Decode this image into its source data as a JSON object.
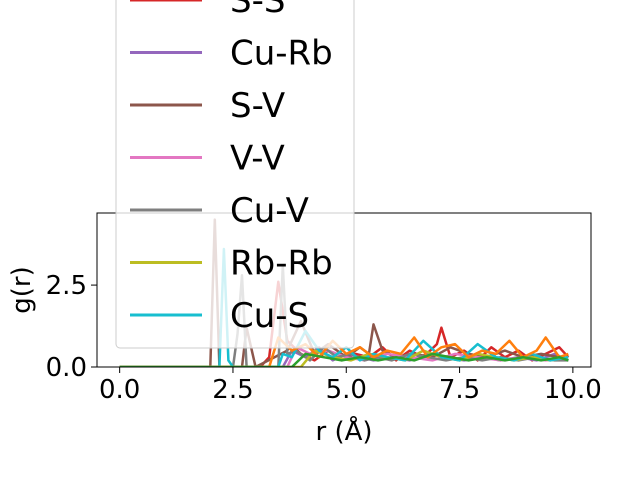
{
  "chart_data": {
    "type": "line",
    "xlabel": "r (Å)",
    "ylabel": "g(r)",
    "xlim": [
      -0.5,
      10.4
    ],
    "ylim": [
      0,
      4.7
    ],
    "xticks": [
      0.0,
      2.5,
      5.0,
      7.5,
      10.0
    ],
    "xtick_labels": [
      "0.0",
      "2.5",
      "5.0",
      "7.5",
      "10.0"
    ],
    "yticks": [
      0.0,
      2.5
    ],
    "ytick_labels": [
      "0.0",
      "2.5"
    ],
    "grid": false,
    "legend_position": "upper-left, overflowing top",
    "series": [
      {
        "name": "S-S",
        "color": "#d62728",
        "x": [
          0,
          3.1,
          3.3,
          3.5,
          3.7,
          4.0,
          4.3,
          4.6,
          4.9,
          5.2,
          5.5,
          5.8,
          6.1,
          6.4,
          6.7,
          7.0,
          7.1,
          7.3,
          7.6,
          7.9,
          8.2,
          8.5,
          8.8,
          9.1,
          9.4,
          9.7,
          9.9
        ],
        "y": [
          0,
          0,
          0.3,
          2.6,
          0.8,
          0.4,
          0.2,
          0.5,
          0.2,
          0.4,
          0.3,
          0.6,
          0.2,
          0.5,
          0.3,
          0.7,
          1.2,
          0.3,
          0.5,
          0.2,
          0.6,
          0.3,
          0.5,
          0.2,
          0.4,
          0.6,
          0.3
        ]
      },
      {
        "name": "Cu-Rb",
        "color": "#9467bd",
        "x": [
          0,
          3.6,
          3.8,
          4.1,
          4.4,
          4.7,
          5.0,
          5.3,
          5.6,
          6.0,
          6.4,
          6.8,
          7.2,
          7.6,
          8.0,
          8.4,
          8.8,
          9.2,
          9.6,
          9.9
        ],
        "y": [
          0,
          0,
          0.5,
          0.3,
          0.6,
          0.2,
          0.4,
          0.3,
          0.2,
          0.3,
          0.2,
          0.4,
          0.3,
          0.2,
          0.3,
          0.2,
          0.3,
          0.2,
          0.4,
          0.2
        ]
      },
      {
        "name": "S-V",
        "color": "#8c564b",
        "x": [
          0,
          2.0,
          2.1,
          2.2,
          2.7,
          2.8,
          3.0,
          3.7,
          4.0,
          4.3,
          4.6,
          5.0,
          5.3,
          5.5,
          5.6,
          5.8,
          6.1,
          6.5,
          6.9,
          7.3,
          7.7,
          8.1,
          8.5,
          8.9,
          9.3,
          9.7,
          9.9
        ],
        "y": [
          0,
          0,
          4.5,
          0,
          0,
          1.2,
          0,
          0.5,
          1.4,
          0.4,
          0.7,
          0.3,
          0.6,
          0.4,
          1.3,
          0.5,
          0.3,
          0.4,
          0.3,
          0.6,
          0.4,
          0.3,
          0.5,
          0.3,
          0.4,
          0.3,
          0.2
        ]
      },
      {
        "name": "V-V",
        "color": "#e377c2",
        "x": [
          0,
          3.7,
          3.9,
          4.2,
          4.6,
          5.0,
          5.4,
          5.9,
          6.4,
          6.9,
          7.4,
          7.9,
          8.4,
          8.9,
          9.4,
          9.9
        ],
        "y": [
          0,
          0,
          0.6,
          0.4,
          0.5,
          0.3,
          0.2,
          0.4,
          0.3,
          0.2,
          0.4,
          0.3,
          0.2,
          0.3,
          0.2,
          0.3
        ]
      },
      {
        "name": "Cu-V",
        "color": "#7f7f7f",
        "x": [
          0,
          2.5,
          2.6,
          2.7,
          2.8,
          3.5,
          3.6,
          3.7,
          3.9,
          4.2,
          4.5,
          4.8,
          5.1,
          5.4,
          5.7,
          6.0,
          6.4,
          6.8,
          7.2,
          7.6,
          8.0,
          8.4,
          8.8,
          9.2,
          9.6,
          9.9
        ],
        "y": [
          0,
          0,
          1.0,
          2.8,
          0,
          0,
          3.1,
          0.4,
          0.5,
          0.2,
          0.6,
          0.3,
          0.4,
          0.2,
          0.3,
          0.2,
          0.4,
          0.3,
          0.2,
          0.3,
          0.2,
          0.3,
          0.2,
          0.3,
          0.2,
          0.2
        ]
      },
      {
        "name": "Rb-Rb",
        "color": "#bcbd22",
        "x": [
          0,
          4.0,
          4.3,
          4.7,
          5.1,
          5.5,
          5.9,
          6.3,
          6.7,
          7.1,
          7.5,
          7.9,
          8.3,
          8.7,
          9.1,
          9.5,
          9.9
        ],
        "y": [
          0,
          0,
          0.5,
          0.3,
          0.2,
          0.4,
          0.3,
          0.2,
          0.5,
          0.3,
          0.2,
          0.4,
          0.3,
          0.2,
          0.3,
          0.2,
          0.3
        ]
      },
      {
        "name": "Cu-S",
        "color": "#17becf",
        "x": [
          0,
          2.2,
          2.3,
          2.4,
          2.5,
          3.5,
          3.6,
          3.8,
          4.1,
          4.4,
          4.7,
          5.0,
          5.3,
          5.6,
          5.9,
          6.3,
          6.7,
          7.1,
          7.5,
          7.9,
          8.3,
          8.7,
          9.1,
          9.5,
          9.9
        ],
        "y": [
          0,
          0,
          3.6,
          0.2,
          0,
          0,
          0.4,
          0.3,
          1.1,
          0.5,
          0.3,
          0.6,
          0.2,
          0.4,
          0.3,
          0.2,
          0.8,
          0.3,
          0.2,
          0.7,
          0.3,
          0.2,
          0.4,
          0.2,
          0.3
        ]
      },
      {
        "name": "",
        "color": "#ff7f0e",
        "x": [
          0,
          3.3,
          3.5,
          3.8,
          4.1,
          4.4,
          4.7,
          5.0,
          5.3,
          5.6,
          5.9,
          6.2,
          6.5,
          6.8,
          7.1,
          7.4,
          7.7,
          8.0,
          8.3,
          8.6,
          8.9,
          9.2,
          9.4,
          9.7,
          9.9
        ],
        "y": [
          0,
          0,
          0.9,
          0.5,
          0.7,
          0.3,
          0.8,
          0.4,
          0.6,
          0.3,
          0.5,
          0.4,
          0.9,
          0.3,
          0.6,
          0.7,
          0.3,
          0.5,
          0.4,
          0.8,
          0.3,
          0.5,
          0.9,
          0.3,
          0.4
        ]
      },
      {
        "name": "",
        "color": "#2ca02c",
        "x": [
          0,
          3.8,
          4.1,
          4.5,
          4.9,
          5.3,
          5.7,
          6.1,
          6.5,
          6.9,
          7.3,
          7.7,
          8.1,
          8.5,
          8.9,
          9.3,
          9.7,
          9.9
        ],
        "y": [
          0,
          0,
          0.4,
          0.3,
          0.2,
          0.3,
          0.2,
          0.3,
          0.2,
          0.4,
          0.3,
          0.2,
          0.3,
          0.2,
          0.3,
          0.2,
          0.3,
          0.2
        ]
      }
    ]
  }
}
